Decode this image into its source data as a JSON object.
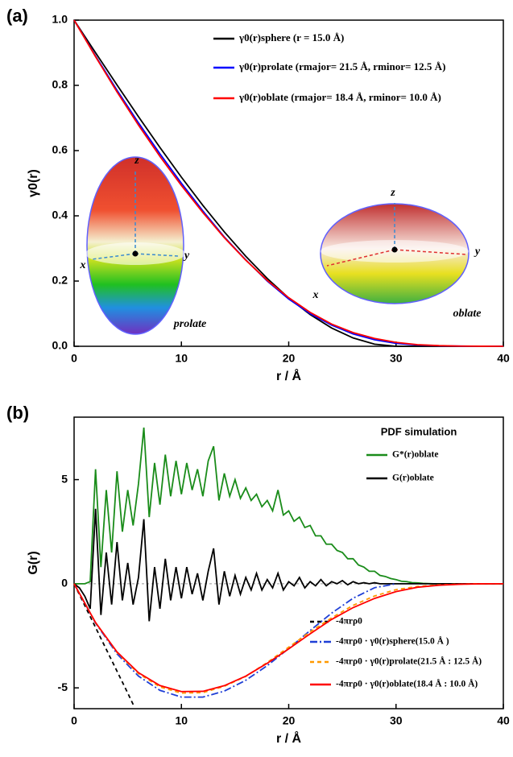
{
  "chart_data": [
    {
      "type": "line",
      "panel_label": "(a)",
      "x_label": "r / Å",
      "y_label": "γ0(r)",
      "xlim": [
        0,
        40
      ],
      "ylim": [
        0,
        1
      ],
      "xticks": [
        0,
        10,
        20,
        30,
        40
      ],
      "yticks": [
        {
          "value": 0,
          "label": "0.0"
        },
        0.2,
        0.4,
        0.6,
        0.8,
        {
          "value": 1,
          "label": "1.0"
        }
      ],
      "annotations": [
        "z",
        "x",
        "y",
        "prolate",
        "z",
        "x",
        "y",
        "oblate"
      ],
      "series": [
        {
          "name": "γ0(r)sphere (r = 15.0 Å)",
          "color": "#000000",
          "dash": "solid",
          "x": [
            0,
            2,
            4,
            6,
            8,
            10,
            12,
            14,
            16,
            18,
            20,
            22,
            24,
            26,
            28,
            30,
            32,
            34,
            36,
            38,
            40
          ],
          "values": [
            1,
            0.9001,
            0.8012,
            0.704,
            0.6095,
            0.5185,
            0.432,
            0.3508,
            0.2759,
            0.208,
            0.1481,
            0.0972,
            0.056,
            0.0255,
            0.0065,
            0,
            0,
            0,
            0,
            0,
            0
          ]
        },
        {
          "name": "γ0(r)prolate (rmajor= 21.5 Å, rminor= 12.5 Å)",
          "color": "#0000ff",
          "dash": "solid",
          "x": [
            0,
            2,
            4,
            6,
            8,
            10,
            12,
            14,
            16,
            18,
            20,
            22,
            24,
            26,
            28,
            30,
            32,
            34,
            36,
            38,
            40
          ],
          "values": [
            1,
            0.89,
            0.785,
            0.685,
            0.59,
            0.5,
            0.415,
            0.335,
            0.265,
            0.2,
            0.145,
            0.1,
            0.065,
            0.038,
            0.02,
            0.009,
            0.004,
            0.0015,
            0.0005,
            0,
            0
          ]
        },
        {
          "name": "γ0(r)oblate (rmajor= 18.4 Å, rminor= 10.0 Å)",
          "color": "#ff0000",
          "dash": "solid",
          "x": [
            0,
            2,
            4,
            6,
            8,
            10,
            12,
            14,
            16,
            18,
            20,
            22,
            24,
            26,
            28,
            30,
            32,
            34,
            36,
            38,
            40
          ],
          "values": [
            1,
            0.888,
            0.78,
            0.678,
            0.582,
            0.493,
            0.41,
            0.333,
            0.264,
            0.202,
            0.149,
            0.104,
            0.068,
            0.042,
            0.024,
            0.012,
            0.005,
            0.002,
            0.0006,
            0.0001,
            0
          ]
        }
      ]
    },
    {
      "type": "line",
      "panel_label": "(b)",
      "x_label": "r / Å",
      "y_label": "G(r)",
      "legend_title": "PDF simulation",
      "xlim": [
        0,
        40
      ],
      "ylim": [
        -6,
        8
      ],
      "xticks": [
        0,
        10,
        20,
        30,
        40
      ],
      "yticks": [
        -5,
        0,
        5
      ],
      "series": [
        {
          "name": "G*(r)oblate",
          "color": "#1a8c1a",
          "dash": "solid",
          "x": [
            0,
            0.5,
            1,
            1.5,
            2,
            2.5,
            3,
            3.5,
            4,
            4.5,
            5,
            5.5,
            6,
            6.5,
            7,
            7.5,
            8,
            8.5,
            9,
            9.5,
            10,
            10.5,
            11,
            11.5,
            12,
            12.5,
            13,
            13.5,
            14,
            14.5,
            15,
            15.5,
            16,
            16.5,
            17,
            17.5,
            18,
            18.5,
            19,
            19.5,
            20,
            20.5,
            21,
            21.5,
            22,
            22.5,
            23,
            23.5,
            24,
            24.5,
            25,
            25.5,
            26,
            26.5,
            27,
            27.5,
            28,
            28.5,
            29,
            29.5,
            30,
            30.5,
            31,
            31.5,
            32,
            32.5,
            33,
            33.5,
            34,
            40
          ],
          "values": [
            0,
            0,
            0,
            0.1,
            5.5,
            0.8,
            4.5,
            1.5,
            5.4,
            2.5,
            4.5,
            2.8,
            4.8,
            7.5,
            3.2,
            5.8,
            3.8,
            6.2,
            4.2,
            5.9,
            4.3,
            5.8,
            4.5,
            5.5,
            4.2,
            5.9,
            6.6,
            4.0,
            5.3,
            4.2,
            5.0,
            4.1,
            4.6,
            4.0,
            4.3,
            3.7,
            4.0,
            3.5,
            4.5,
            3.3,
            3.5,
            3.0,
            3.2,
            2.7,
            2.8,
            2.3,
            2.3,
            1.9,
            1.9,
            1.6,
            1.5,
            1.2,
            1.2,
            0.9,
            0.8,
            0.6,
            0.6,
            0.4,
            0.35,
            0.25,
            0.2,
            0.12,
            0.1,
            0.05,
            0.04,
            0.02,
            0.01,
            0,
            0,
            0
          ]
        },
        {
          "name": "G(r)oblate",
          "color": "#000000",
          "dash": "solid",
          "x": [
            0,
            0.5,
            1,
            1.5,
            2,
            2.5,
            3,
            3.5,
            4,
            4.5,
            5,
            5.5,
            6,
            6.5,
            7,
            7.5,
            8,
            8.5,
            9,
            9.5,
            10,
            10.5,
            11,
            11.5,
            12,
            12.5,
            13,
            13.5,
            14,
            14.5,
            15,
            15.5,
            16,
            16.5,
            17,
            17.5,
            18,
            18.5,
            19,
            19.5,
            20,
            20.5,
            21,
            21.5,
            22,
            22.5,
            23,
            23.5,
            24,
            24.5,
            25,
            25.5,
            26,
            26.5,
            27,
            27.5,
            28,
            28.5,
            29,
            29.5,
            30,
            30.5,
            31,
            31.5,
            32,
            32.5,
            33,
            33.5,
            34,
            40
          ],
          "values": [
            0,
            -0.2,
            -0.6,
            -1.2,
            3.6,
            -1.5,
            1.5,
            -1.0,
            2.0,
            -0.8,
            1.0,
            -1.0,
            0.3,
            3.1,
            -1.8,
            0.8,
            -1.2,
            1.2,
            -0.8,
            0.8,
            -0.7,
            0.8,
            -0.5,
            0.5,
            -0.8,
            0.6,
            1.7,
            -1.0,
            0.6,
            -0.6,
            0.4,
            -0.5,
            0.3,
            -0.3,
            0.5,
            -0.3,
            0.2,
            -0.2,
            0.5,
            -0.3,
            0.1,
            -0.1,
            0.3,
            -0.2,
            0.1,
            -0.1,
            0.2,
            -0.1,
            0.1,
            0,
            0.15,
            -0.05,
            0.1,
            0,
            0.05,
            0,
            0.05,
            0,
            0,
            0,
            0,
            0,
            0,
            0,
            0,
            0,
            0,
            0,
            0,
            0
          ]
        },
        {
          "name": "-4πrρ0",
          "color": "#000000",
          "dash": "dashed",
          "x": [
            0,
            1,
            2,
            3,
            4,
            5,
            5.6
          ],
          "values": [
            0,
            -1.05,
            -2.1,
            -3.15,
            -4.2,
            -5.25,
            -5.9
          ]
        },
        {
          "name": "-4πrρ0 · γ0(r)sphere(15.0 Å )",
          "color": "#1f3fd6",
          "dash": "dashdot",
          "x": [
            0,
            2,
            4,
            6,
            8,
            10,
            12,
            14,
            16,
            18,
            20,
            22,
            24,
            26,
            28,
            30
          ],
          "values": [
            0,
            -1.89,
            -3.365,
            -4.435,
            -5.12,
            -5.444,
            -5.443,
            -5.156,
            -4.635,
            -3.931,
            -3.11,
            -2.245,
            -1.411,
            -0.696,
            -0.191,
            0
          ]
        },
        {
          "name": "-4πrρ0 · γ0(r)prolate(21.5 Å : 12.5 Å)",
          "color": "#ff9900",
          "dash": "dashed",
          "x": [
            0,
            2,
            4,
            6,
            8,
            10,
            12,
            14,
            16,
            18,
            20,
            22,
            24,
            26,
            28,
            30,
            32,
            34,
            36,
            38,
            40
          ],
          "values": [
            0,
            -1.869,
            -3.297,
            -4.316,
            -4.956,
            -5.25,
            -5.229,
            -4.924,
            -4.452,
            -3.78,
            -3.045,
            -2.31,
            -1.638,
            -1.037,
            -0.588,
            -0.284,
            -0.134,
            -0.054,
            -0.019,
            0,
            0
          ]
        },
        {
          "name": "-4πrρ0 · γ0(r)oblate(18.4 Å : 10.0 Å)",
          "color": "#ff0000",
          "dash": "solid",
          "x": [
            0,
            2,
            4,
            6,
            8,
            10,
            12,
            14,
            16,
            18,
            20,
            22,
            24,
            26,
            28,
            30,
            32,
            34,
            36,
            38,
            40
          ],
          "values": [
            0,
            -1.865,
            -3.276,
            -4.271,
            -4.889,
            -5.177,
            -5.166,
            -4.895,
            -4.435,
            -3.818,
            -3.129,
            -2.402,
            -1.714,
            -1.147,
            -0.706,
            -0.378,
            -0.168,
            -0.071,
            -0.023,
            -0.004,
            0
          ]
        }
      ]
    }
  ]
}
